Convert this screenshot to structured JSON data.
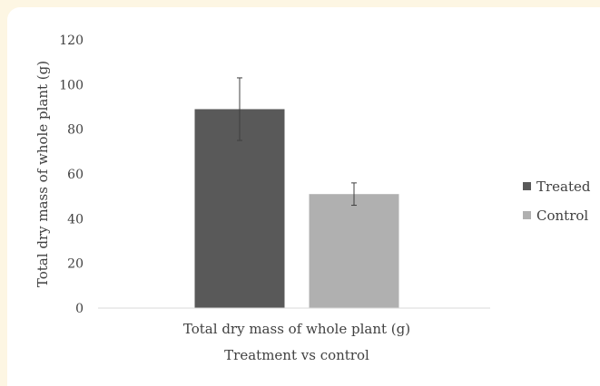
{
  "chart_data": {
    "type": "bar",
    "categories": [
      "Total dry mass of whole plant (g)"
    ],
    "series": [
      {
        "name": "Treated",
        "values": [
          89
        ],
        "error": [
          14
        ],
        "color": "#595959"
      },
      {
        "name": "Control",
        "values": [
          51
        ],
        "error": [
          5
        ],
        "color": "#b0b0b0"
      }
    ],
    "xlabel": "Treatment vs control",
    "ylabel": "Total dry mass of whole plant (g)",
    "ylim": [
      0,
      120
    ],
    "yticks": [
      0,
      20,
      40,
      60,
      80,
      100,
      120
    ],
    "grid": false,
    "legend": "right"
  }
}
